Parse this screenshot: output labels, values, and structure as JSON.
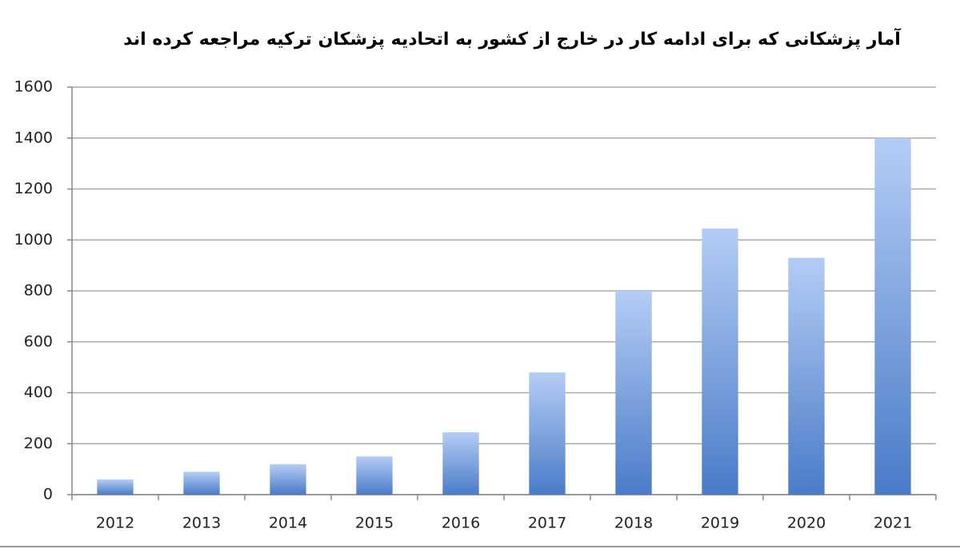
{
  "chart_data": {
    "type": "bar",
    "title": "آمار پزشکانی که برای ادامه کار در خارج از کشور به اتحادیه پزشکان ترکیه مراجعه کرده اند",
    "categories": [
      "2012",
      "2013",
      "2014",
      "2015",
      "2016",
      "2017",
      "2018",
      "2019",
      "2020",
      "2021"
    ],
    "values": [
      60,
      90,
      120,
      150,
      245,
      480,
      800,
      1045,
      930,
      1400
    ],
    "color": "#4a7bc8",
    "ylim": [
      0,
      1600
    ],
    "yticks": [
      0,
      200,
      400,
      600,
      800,
      1000,
      1200,
      1400,
      1600
    ],
    "grid": true
  }
}
